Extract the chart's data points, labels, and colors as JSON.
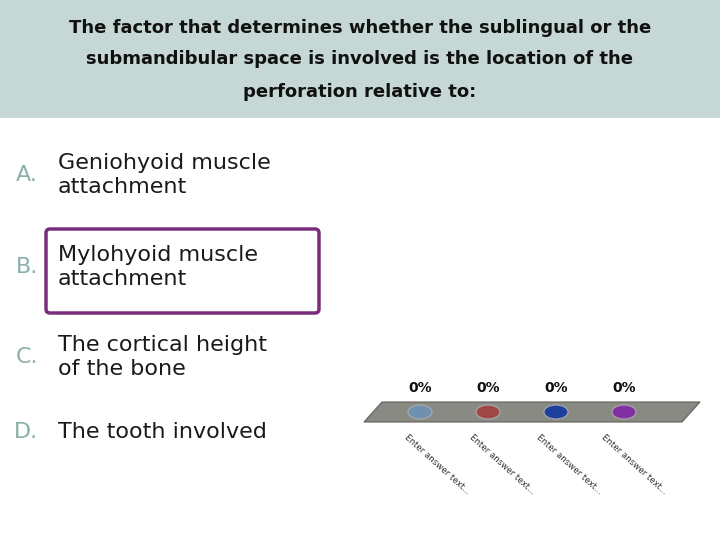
{
  "title_line1": "The factor that determines whether the sublingual or the",
  "title_line2": "submandibular space is involved is the location of the",
  "title_line3": "perforation relative to:",
  "title_bg_color": "#c5d8d5",
  "bg_color": "#ffffff",
  "options": [
    {
      "label": "A.",
      "text": "Geniohyoid muscle\nattachment",
      "boxed": false
    },
    {
      "label": "B.",
      "text": "Mylohyoid muscle\nattachment",
      "boxed": true
    },
    {
      "label": "C.",
      "text": "The cortical height\nof the bone",
      "boxed": false
    },
    {
      "label": "D.",
      "text": "The tooth involved",
      "boxed": false
    }
  ],
  "label_color": "#8ab0aa",
  "text_color": "#1a1a1a",
  "box_edge_color": "#7a2d7a",
  "poll_bar_color": "#8a8a84",
  "poll_bar_edge": "#606058",
  "poll_dots": [
    "#7090b0",
    "#a04848",
    "#2040a0",
    "#8030a0"
  ],
  "poll_percentages": [
    "0%",
    "0%",
    "0%",
    "0%"
  ],
  "poll_label_text": "Enter answer text...",
  "poll_label_color": "#333333"
}
